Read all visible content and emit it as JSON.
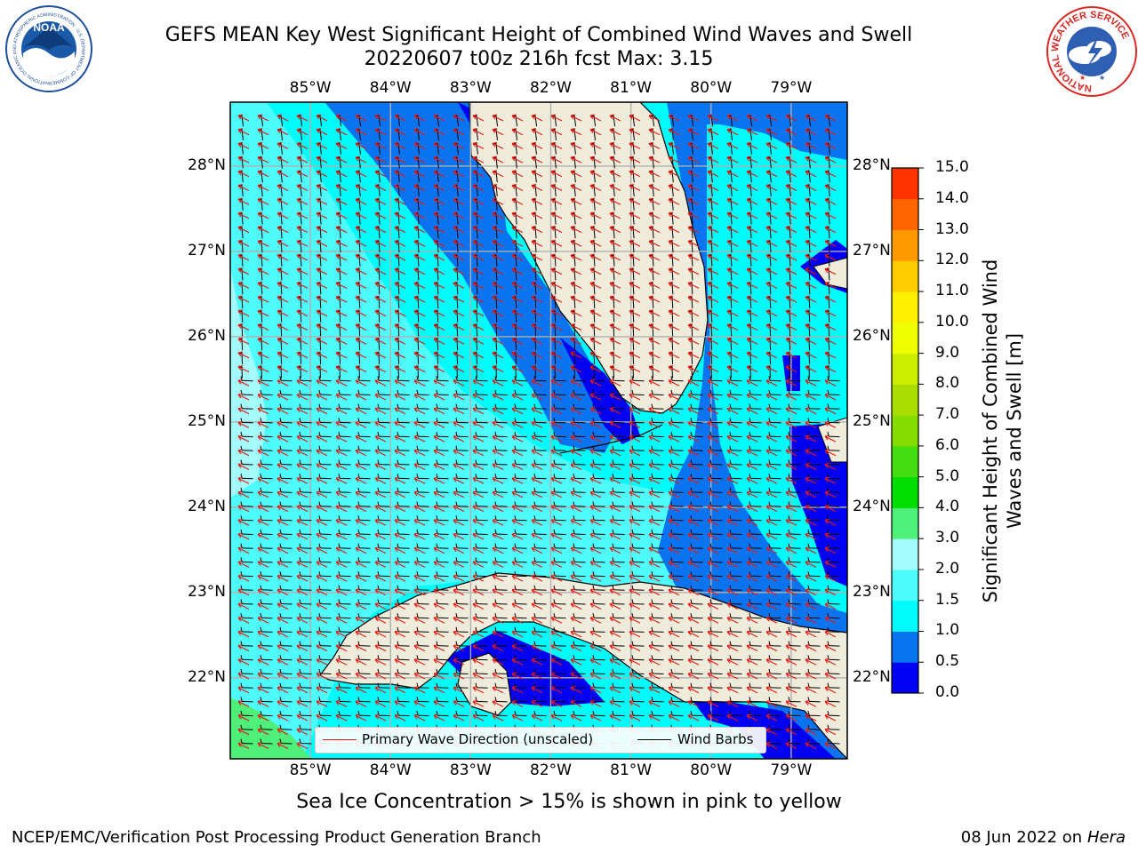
{
  "title": {
    "line1": "GEFS MEAN Key West Significant Height of Combined Wind Waves and Swell",
    "line2": "20220607 t00z 216h fcst   Max: 3.15"
  },
  "map": {
    "lon_labels": [
      "85°W",
      "84°W",
      "83°W",
      "82°W",
      "81°W",
      "80°W",
      "79°W"
    ],
    "lat_labels": [
      "22°N",
      "23°N",
      "24°N",
      "25°N",
      "26°N",
      "27°N",
      "28°N"
    ],
    "lon_range": [
      -86.0,
      -78.3
    ],
    "lat_range": [
      21.05,
      28.75
    ],
    "land_color": "#efecdc",
    "wave_arrow_color": "#e8170f",
    "barb_color": "#000000"
  },
  "colorbar": {
    "ticks": [
      "0.0",
      "0.5",
      "1.0",
      "1.5",
      "2.0",
      "3.0",
      "4.0",
      "5.0",
      "6.0",
      "7.0",
      "8.0",
      "9.0",
      "10.0",
      "11.0",
      "12.0",
      "13.0",
      "14.0",
      "15.0"
    ],
    "colors": [
      "#0000f3",
      "#0a73f0",
      "#00fbfb",
      "#4ffcfc",
      "#a3fcfb",
      "#4ff07a",
      "#00dd00",
      "#44dd11",
      "#88dd00",
      "#aadd00",
      "#ccee00",
      "#eeff00",
      "#fff000",
      "#ffcc00",
      "#ff9900",
      "#ff6600",
      "#ff3300",
      "#ff0000"
    ],
    "label": "Significant Height of Combined Wind Waves and Swell [m]"
  },
  "legend": {
    "wave_label": "Primary Wave Direction (unscaled)",
    "barb_label": "Wind Barbs"
  },
  "logos": {
    "noaa_text": "NOAA",
    "noaa_ring": "NATIONAL OCEANIC AND ATMOSPHERIC ADMINISTRATION · U.S. DEPARTMENT OF COMMERCE",
    "nws_ring": "NATIONAL WEATHER SERVICE"
  },
  "subtitle": "Sea Ice Concentration > 15% is shown in pink to yellow",
  "footer": {
    "left": "NCEP/EMC/Verification Post Processing Product Generation Branch",
    "right_date": "08 Jun 2022 on",
    "right_host": "Hera"
  }
}
